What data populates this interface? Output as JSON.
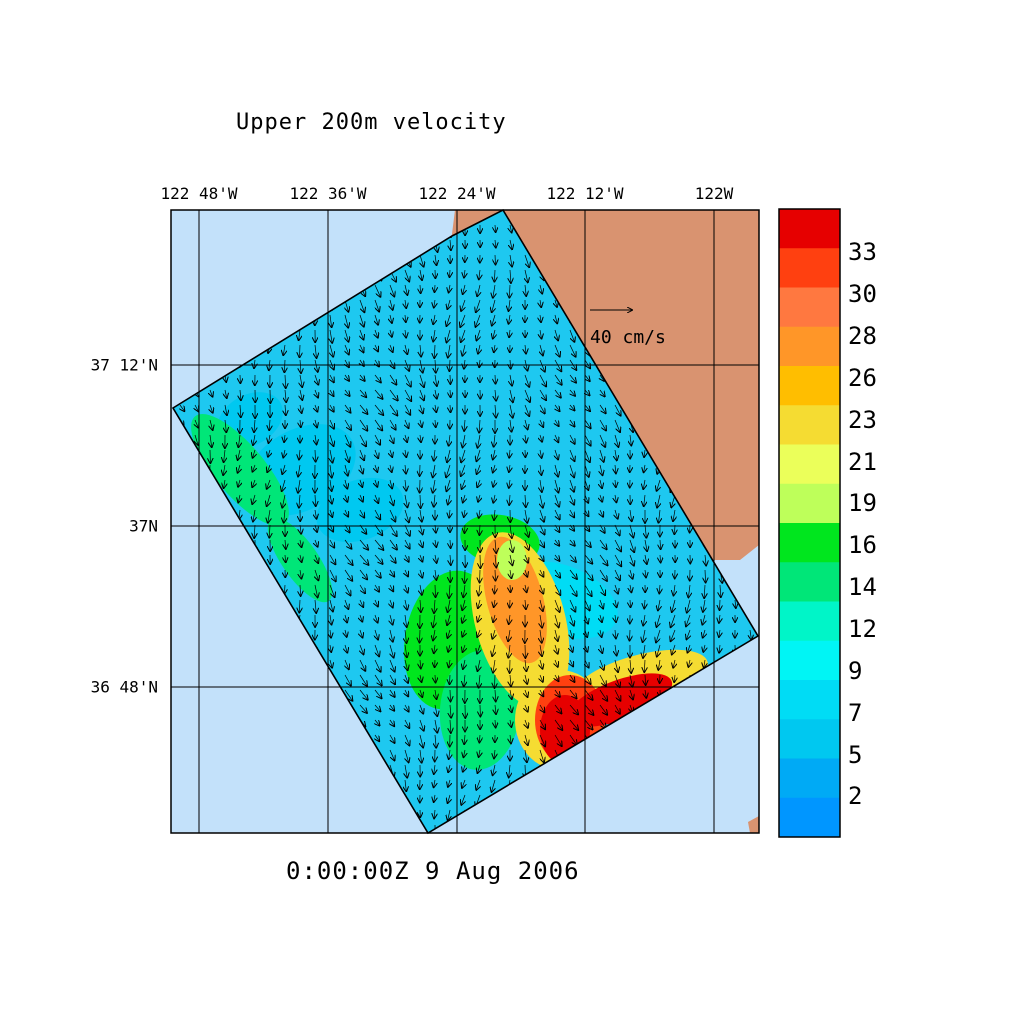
{
  "title": "Upper 200m velocity",
  "timestamp": "0:00:00Z   9 Aug 2006",
  "lon_ticks": [
    "122 48'W",
    "122 36'W",
    "122 24'W",
    "122 12'W",
    "122W"
  ],
  "lat_ticks": [
    "37 12'N",
    "37N",
    "36 48'N"
  ],
  "scale_vector": {
    "label": "40 cm/s",
    "value": 40,
    "unit": "cm/s"
  },
  "colorbar": {
    "labels": [
      "33",
      "30",
      "28",
      "26",
      "23",
      "21",
      "19",
      "16",
      "14",
      "12",
      "9",
      "7",
      "5",
      "2"
    ],
    "colors_top_to_bottom": [
      "#e60000",
      "#ff4010",
      "#ff7840",
      "#ff9628",
      "#ffbe00",
      "#f5dc32",
      "#ebff5a",
      "#beff5a",
      "#00e61e",
      "#00e678",
      "#00f5c8",
      "#00f5f5",
      "#00dcf5",
      "#00c8f0",
      "#00aaf5",
      "#0096ff"
    ]
  },
  "colors": {
    "ocean": "#c3e1fa",
    "land": "#d99370",
    "domain_fill": "#1ec8f0"
  }
}
